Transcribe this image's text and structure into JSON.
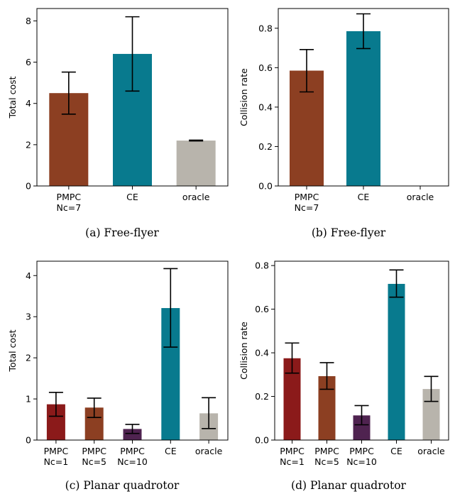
{
  "chart_data": [
    {
      "type": "bar",
      "caption": "(a) Free-flyer",
      "ylabel": "Total cost",
      "ylim": [
        0,
        8.6
      ],
      "yticks": [
        "0",
        "2",
        "4",
        "6",
        "8"
      ],
      "categories": [
        [
          "PMPC",
          "Nc=7"
        ],
        [
          "CE"
        ],
        [
          "oracle"
        ]
      ],
      "values": [
        4.5,
        6.4,
        2.2
      ],
      "errors": [
        [
          3.48,
          5.52
        ],
        [
          4.6,
          8.2
        ],
        [
          2.18,
          2.22
        ]
      ],
      "colors": [
        "#8c3f22",
        "#087a8e",
        "#b8b4ac"
      ]
    },
    {
      "type": "bar",
      "caption": "(b) Free-flyer",
      "ylabel": "Collision rate",
      "ylim": [
        0,
        0.9
      ],
      "yticks": [
        "0.0",
        "0.2",
        "0.4",
        "0.6",
        "0.8"
      ],
      "categories": [
        [
          "PMPC",
          "Nc=7"
        ],
        [
          "CE"
        ],
        [
          "oracle"
        ]
      ],
      "values": [
        0.585,
        0.785,
        0.0
      ],
      "errors": [
        [
          0.477,
          0.692
        ],
        [
          0.697,
          0.873
        ],
        null
      ],
      "colors": [
        "#8c3f22",
        "#087a8e",
        "#b8b4ac"
      ]
    },
    {
      "type": "bar",
      "caption": "(c) Planar quadrotor",
      "ylabel": "Total cost",
      "ylim": [
        0,
        4.35
      ],
      "yticks": [
        "0",
        "1",
        "2",
        "3",
        "4"
      ],
      "categories": [
        [
          "PMPC",
          "Nc=1"
        ],
        [
          "PMPC",
          "Nc=5"
        ],
        [
          "PMPC",
          "Nc=10"
        ],
        [
          "CE"
        ],
        [
          "oracle"
        ]
      ],
      "values": [
        0.87,
        0.79,
        0.27,
        3.21,
        0.65
      ],
      "errors": [
        [
          0.58,
          1.16
        ],
        [
          0.55,
          1.02
        ],
        [
          0.16,
          0.38
        ],
        [
          2.26,
          4.17
        ],
        [
          0.28,
          1.03
        ]
      ],
      "colors": [
        "#8b1a1a",
        "#8c3f22",
        "#4f2350",
        "#087a8e",
        "#b8b4ac"
      ]
    },
    {
      "type": "bar",
      "caption": "(d) Planar quadrotor",
      "ylabel": "Collision rate",
      "ylim": [
        0,
        0.82
      ],
      "yticks": [
        "0.0",
        "0.2",
        "0.4",
        "0.6",
        "0.8"
      ],
      "categories": [
        [
          "PMPC",
          "Nc=1"
        ],
        [
          "PMPC",
          "Nc=5"
        ],
        [
          "PMPC",
          "Nc=10"
        ],
        [
          "CE"
        ],
        [
          "oracle"
        ]
      ],
      "values": [
        0.375,
        0.293,
        0.113,
        0.716,
        0.234
      ],
      "errors": [
        [
          0.307,
          0.445
        ],
        [
          0.233,
          0.355
        ],
        [
          0.07,
          0.158
        ],
        [
          0.655,
          0.78
        ],
        [
          0.177,
          0.292
        ]
      ],
      "colors": [
        "#8b1a1a",
        "#8c3f22",
        "#4f2350",
        "#087a8e",
        "#b8b4ac"
      ]
    }
  ]
}
